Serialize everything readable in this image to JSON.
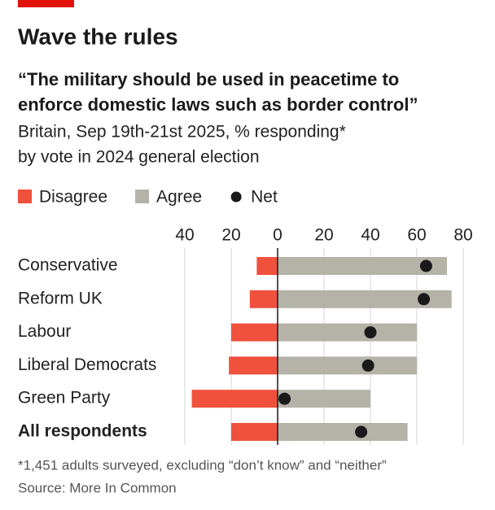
{
  "chart_data": {
    "type": "bar",
    "title": "Wave the rules",
    "subtitle": [
      "“The military should be used in peacetime to",
      "enforce domestic laws such as border control”"
    ],
    "description": [
      "Britain, Sep 19th-21st 2025, % responding*",
      "by vote in 2024 general election"
    ],
    "categories": [
      "Conservative",
      "Reform UK",
      "Labour",
      "Liberal Democrats",
      "Green Party",
      "All respondents"
    ],
    "series": [
      {
        "name": "Disagree",
        "color": "#ef513d",
        "values": [
          -9,
          -12,
          -20,
          -21,
          -37,
          -20
        ]
      },
      {
        "name": "Agree",
        "color": "#b5b3a8",
        "values": [
          73,
          75,
          60,
          60,
          40,
          56
        ]
      },
      {
        "name": "Net",
        "color": "#1a1a1a",
        "values": [
          64,
          63,
          40,
          39,
          3,
          36
        ]
      }
    ],
    "xlim": [
      -40,
      80
    ],
    "xticks": [
      {
        "value": -40,
        "label": "40"
      },
      {
        "value": -20,
        "label": "20"
      },
      0,
      20,
      40,
      60,
      80
    ],
    "grid": true,
    "notes": [
      "*1,451 adults surveyed, excluding “don’t know” and “neither”",
      "Source: More In Common"
    ]
  }
}
